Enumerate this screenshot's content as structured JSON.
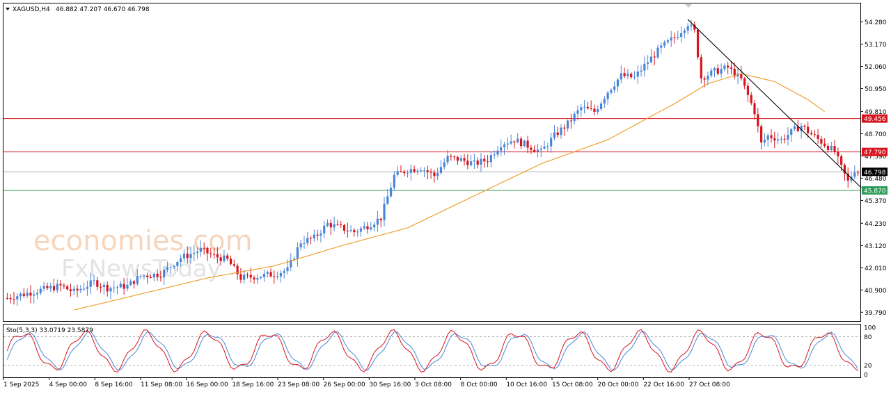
{
  "header": {
    "symbol": "XAGUSD,H4",
    "ohlc": "46.882 47.207 46.670 46.798"
  },
  "indicator": {
    "label": "Sto(5,3,3) 33.0719 23.5879",
    "levels": [
      80,
      20
    ],
    "scale_ticks": [
      "100",
      "80",
      "20",
      "0"
    ]
  },
  "watermark": {
    "line1": "economies.com",
    "line2": "FxNewsToday"
  },
  "colors": {
    "bull": "#4a86d8",
    "bear": "#d8141e",
    "ma": "#f0a030",
    "resistance": "#d8141e",
    "support": "#2e9e5a",
    "current": "#9a9a9a",
    "stoch_k": "#d8141e",
    "stoch_d": "#4a86d8"
  },
  "chart_data": {
    "type": "candlestick",
    "symbol": "XAGUSD",
    "timeframe": "H4",
    "ylim": [
      39.35,
      55.2
    ],
    "y_ticks": [
      "54.280",
      "53.170",
      "52.060",
      "50.950",
      "49.810",
      "48.700",
      "47.590",
      "46.480",
      "45.370",
      "44.230",
      "43.120",
      "42.010",
      "40.900",
      "39.790"
    ],
    "x_ticks": [
      "1 Sep 2025",
      "4 Sep 00:00",
      "8 Sep 16:00",
      "11 Sep 08:00",
      "16 Sep 00:00",
      "18 Sep 16:00",
      "23 Sep 08:00",
      "26 Sep 00:00",
      "30 Sep 16:00",
      "3 Oct 08:00",
      "8 Oct 00:00",
      "10 Oct 16:00",
      "15 Oct 08:00",
      "20 Oct 00:00",
      "22 Oct 16:00",
      "27 Oct 08:00"
    ],
    "price_levels": [
      {
        "label": "49.456",
        "value": 49.456,
        "kind": "resistance"
      },
      {
        "label": "47.790",
        "value": 47.79,
        "kind": "resistance"
      },
      {
        "label": "46.798",
        "value": 46.798,
        "kind": "current"
      },
      {
        "label": "45.870",
        "value": 45.87,
        "kind": "support"
      }
    ],
    "trendline": [
      {
        "x": 204,
        "y": 54.4
      },
      {
        "x": 256,
        "y": 46.0
      }
    ],
    "anchors": [
      [
        0,
        40.5
      ],
      [
        10,
        40.9
      ],
      [
        16,
        41.1
      ],
      [
        20,
        40.8
      ],
      [
        26,
        41.3
      ],
      [
        30,
        41.0
      ],
      [
        36,
        41.1
      ],
      [
        40,
        41.6
      ],
      [
        46,
        41.7
      ],
      [
        52,
        42.5
      ],
      [
        58,
        42.9
      ],
      [
        62,
        42.6
      ],
      [
        66,
        42.4
      ],
      [
        70,
        41.5
      ],
      [
        76,
        41.6
      ],
      [
        80,
        41.7
      ],
      [
        84,
        41.9
      ],
      [
        88,
        43.3
      ],
      [
        92,
        43.5
      ],
      [
        96,
        44.2
      ],
      [
        100,
        44.0
      ],
      [
        104,
        43.8
      ],
      [
        108,
        44.1
      ],
      [
        112,
        44.5
      ],
      [
        116,
        46.6
      ],
      [
        120,
        46.9
      ],
      [
        124,
        47.0
      ],
      [
        128,
        46.6
      ],
      [
        132,
        47.5
      ],
      [
        136,
        47.4
      ],
      [
        140,
        47.2
      ],
      [
        144,
        47.4
      ],
      [
        148,
        48.2
      ],
      [
        152,
        48.4
      ],
      [
        156,
        48.1
      ],
      [
        160,
        47.8
      ],
      [
        164,
        48.6
      ],
      [
        168,
        49.2
      ],
      [
        172,
        50.0
      ],
      [
        176,
        49.8
      ],
      [
        180,
        50.8
      ],
      [
        184,
        51.6
      ],
      [
        188,
        51.5
      ],
      [
        192,
        52.3
      ],
      [
        196,
        53.0
      ],
      [
        200,
        53.5
      ],
      [
        204,
        54.2
      ],
      [
        206,
        53.8
      ],
      [
        208,
        51.5
      ],
      [
        212,
        51.8
      ],
      [
        216,
        52.0
      ],
      [
        220,
        51.4
      ],
      [
        224,
        49.8
      ],
      [
        226,
        48.2
      ],
      [
        228,
        48.6
      ],
      [
        232,
        48.4
      ],
      [
        236,
        48.9
      ],
      [
        238,
        49.1
      ],
      [
        240,
        48.8
      ],
      [
        244,
        48.3
      ],
      [
        248,
        47.8
      ],
      [
        250,
        47.0
      ],
      [
        252,
        46.3
      ],
      [
        254,
        46.9
      ],
      [
        255,
        46.798
      ]
    ],
    "ma_anchors": [
      [
        20,
        39.9
      ],
      [
        40,
        40.7
      ],
      [
        60,
        41.5
      ],
      [
        80,
        42.1
      ],
      [
        100,
        43.1
      ],
      [
        120,
        44.0
      ],
      [
        140,
        45.6
      ],
      [
        160,
        47.2
      ],
      [
        180,
        48.4
      ],
      [
        200,
        50.2
      ],
      [
        210,
        51.2
      ],
      [
        220,
        51.7
      ],
      [
        230,
        51.3
      ],
      [
        240,
        50.4
      ],
      [
        245,
        49.8
      ]
    ],
    "stoch_range": [
      0,
      100
    ]
  }
}
